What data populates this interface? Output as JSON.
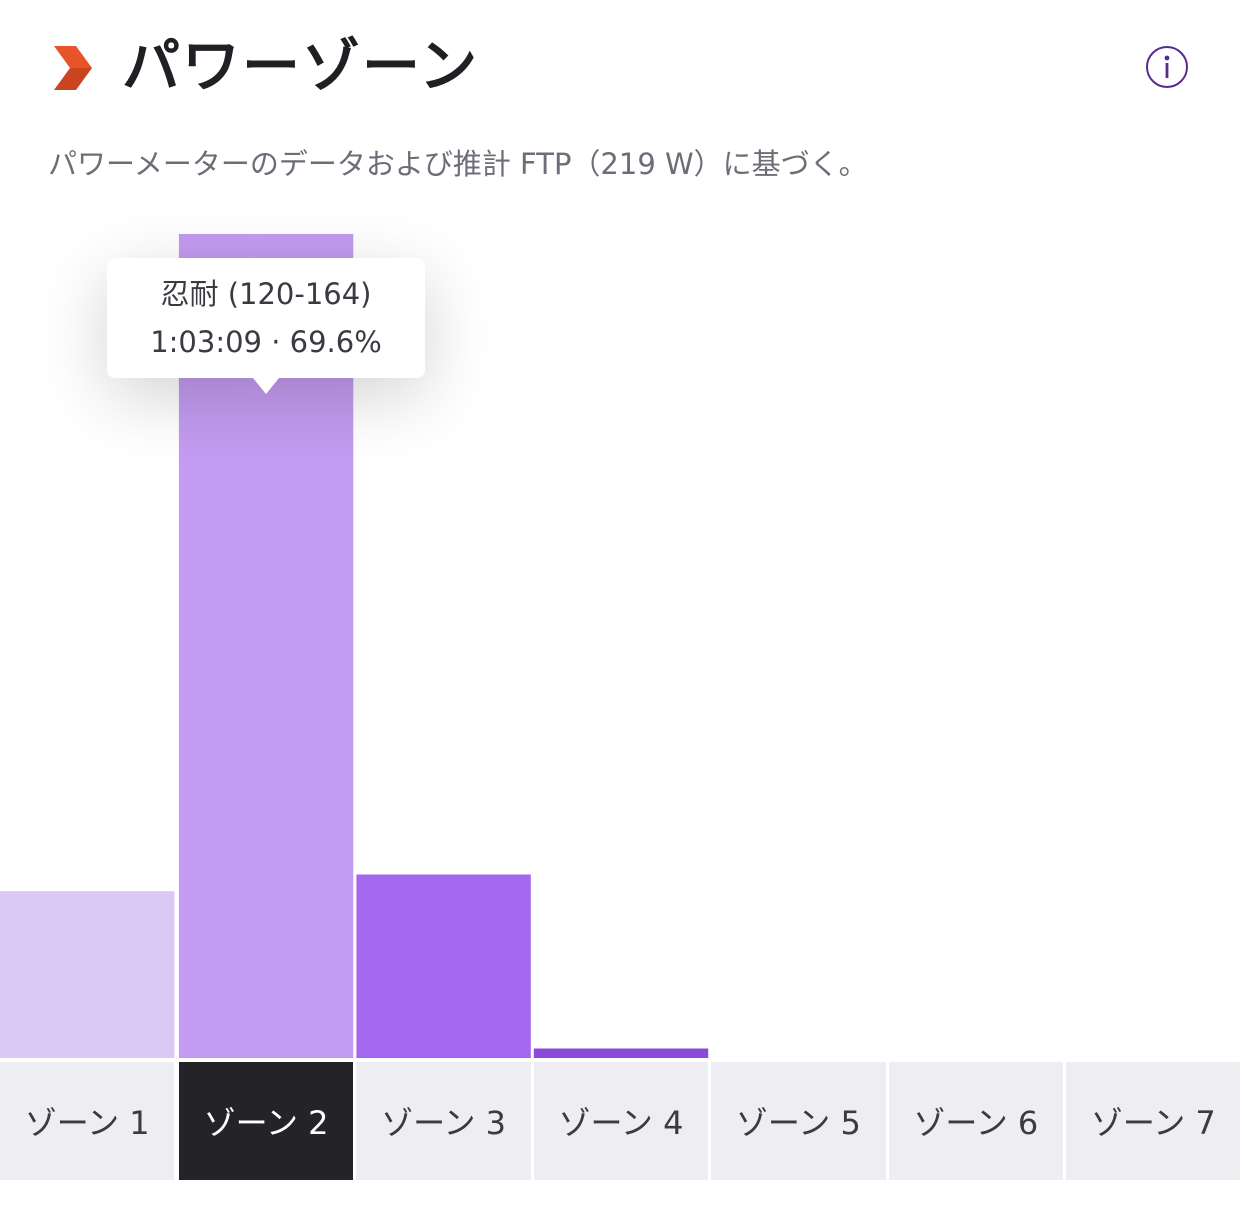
{
  "header": {
    "title": "パワーゾーン",
    "subtitle": "パワーメーターのデータおよび推計 FTP（219 W）に基づく。",
    "brand_icon": "chevron-right-icon",
    "info_icon": "info-icon"
  },
  "tooltip": {
    "line1": "忍耐 (120-164)",
    "line2": "1:03:09 · 69.6%"
  },
  "colors": {
    "accent_orange": "#e8542a",
    "info_purple": "#5b2a91",
    "zone_colors": [
      "#dcc8f5",
      "#c39bf0",
      "#a468ee",
      "#8b4ad8",
      "#7a35c7",
      "#6a26b3",
      "#5a1a9e"
    ]
  },
  "chart_data": {
    "type": "bar",
    "categories": [
      "ゾーン 1",
      "ゾーン 2",
      "ゾーン 3",
      "ゾーン 4",
      "ゾーン 5",
      "ゾーン 6",
      "ゾーン 7"
    ],
    "values": [
      14.1,
      69.6,
      15.5,
      0.8,
      0,
      0,
      0
    ],
    "unit": "%",
    "ylim": [
      0,
      69.6
    ],
    "selected_index": 1,
    "grid": false,
    "legend": "none"
  }
}
